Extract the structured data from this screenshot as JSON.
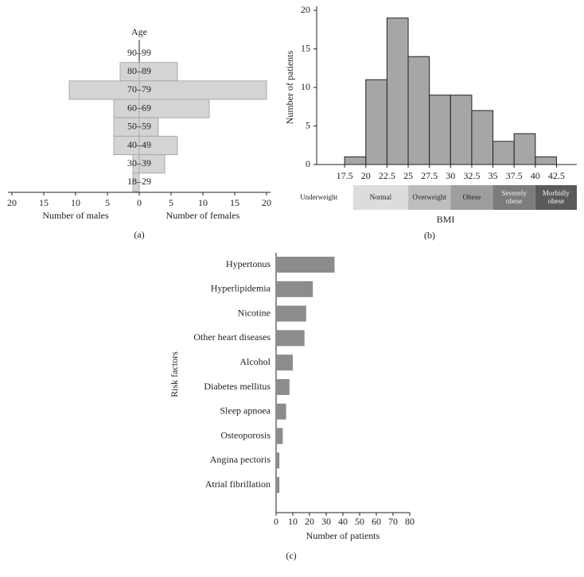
{
  "chart_data": [
    {
      "type": "pyramid",
      "panel_label": "(a)",
      "ylabel": "Age",
      "categories": [
        "90–99",
        "80–89",
        "70–79",
        "60–69",
        "50–59",
        "40–49",
        "30–39",
        "18–29"
      ],
      "series": [
        {
          "name": "Number of males",
          "side": "left",
          "color": "#d4d4d4",
          "values": [
            0,
            3,
            11,
            4,
            4,
            4,
            1,
            1
          ]
        },
        {
          "name": "Number of females",
          "side": "right",
          "color": "#d4d4d4",
          "values": [
            0,
            6,
            20,
            11,
            3,
            6,
            4,
            0
          ]
        }
      ],
      "xlim": [
        0,
        20
      ],
      "xticks_left": [
        20,
        15,
        10,
        5,
        0
      ],
      "xticks_right": [
        5,
        10,
        15,
        20
      ]
    },
    {
      "type": "histogram",
      "panel_label": "(b)",
      "xlabel": "BMI",
      "ylabel": "Number of patients",
      "bins": [
        17.5,
        20,
        22.5,
        25,
        27.5,
        30,
        32.5,
        35,
        37.5,
        40,
        42.5
      ],
      "values": [
        1,
        11,
        19,
        14,
        9,
        9,
        7,
        3,
        4,
        1
      ],
      "color": "#a6a6a6",
      "xlim": [
        14.2,
        44.9
      ],
      "xticks": [
        17.5,
        20,
        22.5,
        25,
        27.5,
        30,
        32.5,
        35,
        37.5,
        40,
        42.5
      ],
      "ylim": [
        0,
        20
      ],
      "yticks": [
        0,
        5,
        10,
        15,
        20
      ],
      "classes": [
        {
          "label": "Underweight",
          "range": [
            10.4,
            18.5
          ],
          "color": "#ffffff"
        },
        {
          "label": "Normal",
          "range": [
            18.5,
            25
          ],
          "color": "#dcdcdc"
        },
        {
          "label": "Overweight",
          "range": [
            25,
            30
          ],
          "color": "#bdbdbd"
        },
        {
          "label": "Obese",
          "range": [
            30,
            35
          ],
          "color": "#9e9e9e"
        },
        {
          "label": "Severely obese",
          "range": [
            35,
            40
          ],
          "color": "#7c7c7c"
        },
        {
          "label": "Morbidly obese",
          "range": [
            40,
            44.9
          ],
          "color": "#5a5a5a"
        }
      ]
    },
    {
      "type": "hbar",
      "panel_label": "(c)",
      "xlabel": "Number of patients",
      "ylabel": "Risk factors",
      "categories": [
        "Hypertonus",
        "Hyperlipidemia",
        "Nicotine",
        "Other heart diseases",
        "Alcohol",
        "Diabetes mellitus",
        "Sleep apnoea",
        "Osteoporosis",
        "Angina pectoris",
        "Atrial fibrillation"
      ],
      "values": [
        35,
        22,
        18,
        17,
        10,
        8,
        6,
        4,
        2,
        2
      ],
      "color": "#8c8c8c",
      "xlim": [
        0,
        80
      ],
      "xticks": [
        0,
        10,
        20,
        30,
        40,
        50,
        60,
        70,
        80
      ]
    }
  ]
}
